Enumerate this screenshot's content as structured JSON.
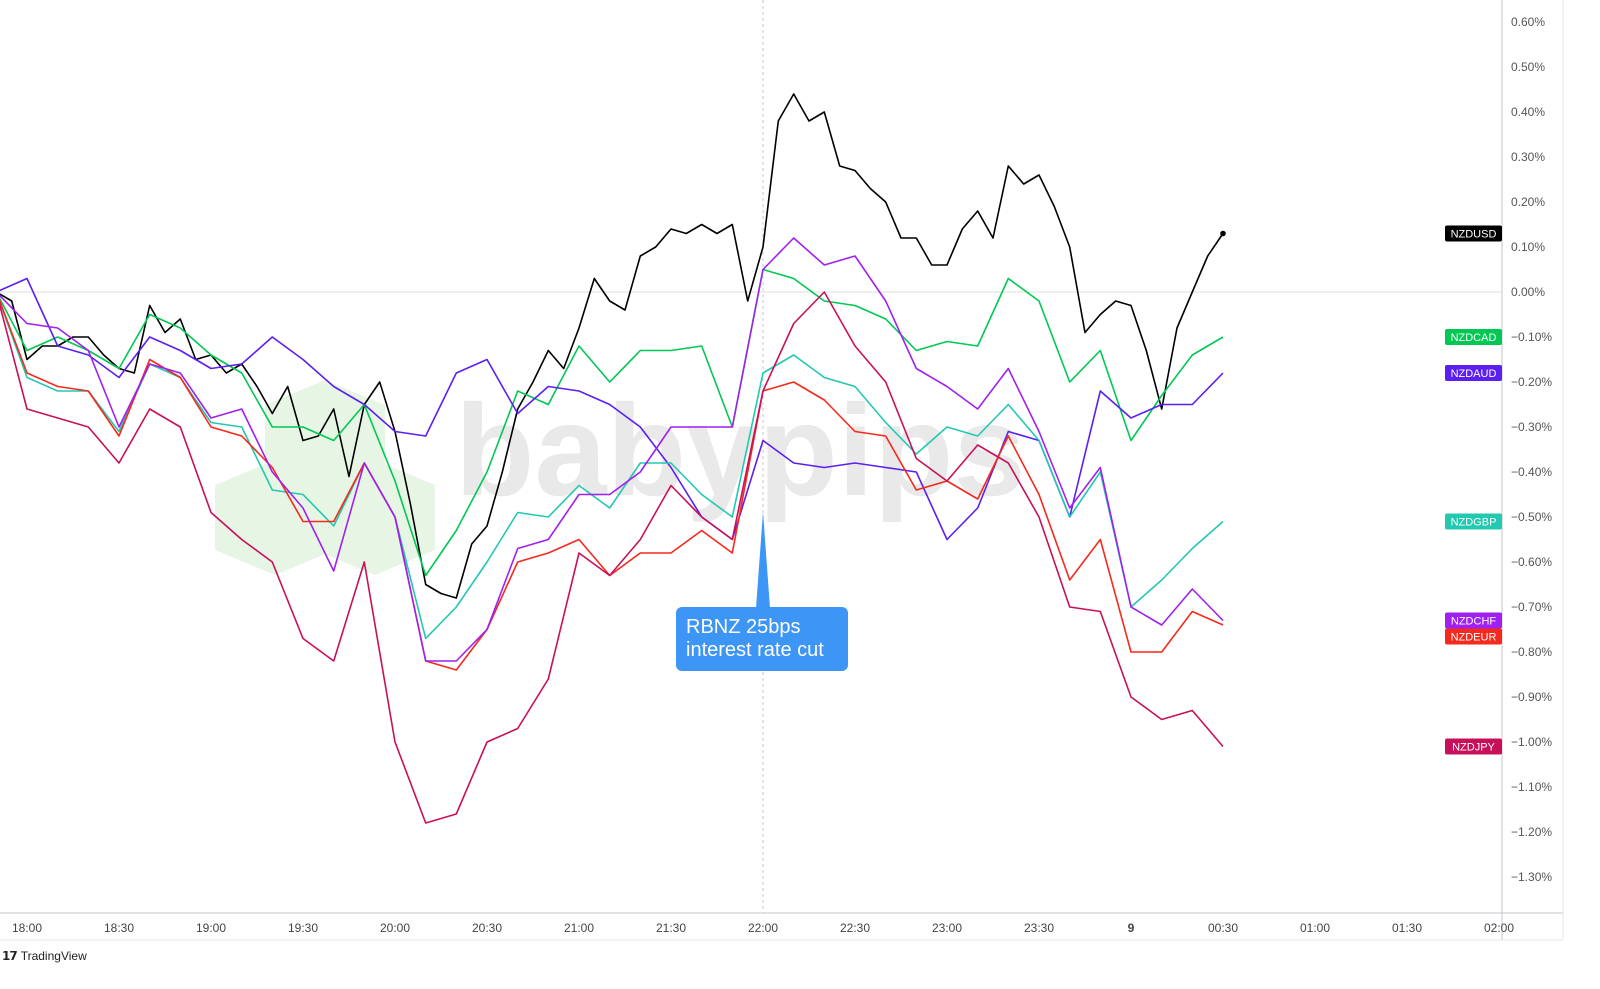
{
  "chart_data": {
    "type": "line",
    "title": "",
    "xlabel": "",
    "ylabel": "",
    "x_unit": "minutes from 18:00",
    "ylim": [
      -1.4,
      0.64
    ],
    "y_ticks": [
      0.6,
      0.5,
      0.4,
      0.3,
      0.2,
      0.1,
      0.0,
      -0.1,
      -0.2,
      -0.3,
      -0.4,
      -0.5,
      -0.6,
      -0.7,
      -0.8,
      -0.9,
      -1.0,
      -1.1,
      -1.2,
      -1.3
    ],
    "y_tick_labels": [
      "0.60%",
      "0.50%",
      "0.40%",
      "0.30%",
      "0.20%",
      "0.10%",
      "0.00%",
      "−0.10%",
      "−0.20%",
      "−0.30%",
      "−0.40%",
      "−0.50%",
      "−0.60%",
      "−0.70%",
      "−0.80%",
      "−0.90%",
      "−1.00%",
      "−1.10%",
      "−1.20%",
      "−1.30%"
    ],
    "x_ticks": [
      {
        "label": "18:00",
        "minutes": 0,
        "bold": false
      },
      {
        "label": "18:30",
        "minutes": 30,
        "bold": false
      },
      {
        "label": "19:00",
        "minutes": 60,
        "bold": false
      },
      {
        "label": "19:30",
        "minutes": 90,
        "bold": false
      },
      {
        "label": "20:00",
        "minutes": 120,
        "bold": false
      },
      {
        "label": "20:30",
        "minutes": 150,
        "bold": false
      },
      {
        "label": "21:00",
        "minutes": 180,
        "bold": false
      },
      {
        "label": "21:30",
        "minutes": 210,
        "bold": false
      },
      {
        "label": "22:00",
        "minutes": 240,
        "bold": false
      },
      {
        "label": "22:30",
        "minutes": 270,
        "bold": false
      },
      {
        "label": "23:00",
        "minutes": 300,
        "bold": false
      },
      {
        "label": "23:30",
        "minutes": 330,
        "bold": false
      },
      {
        "label": "9",
        "minutes": 360,
        "bold": true
      },
      {
        "label": "00:30",
        "minutes": 390,
        "bold": false
      },
      {
        "label": "01:00",
        "minutes": 420,
        "bold": false
      },
      {
        "label": "01:30",
        "minutes": 450,
        "bold": false
      },
      {
        "label": "02:00",
        "minutes": 480,
        "bold": false
      }
    ],
    "grid": false,
    "legend": "right-edge tags",
    "event_line_minutes": 240,
    "annotation": {
      "line1": "RBNZ 25bps",
      "line2": "interest rate cut"
    },
    "series": [
      {
        "name": "NZDUSD",
        "color": "#000000",
        "x_start": -10,
        "step": 5,
        "last_dot": true,
        "values": [
          0,
          -0.02,
          -0.15,
          -0.12,
          -0.12,
          -0.1,
          -0.1,
          -0.14,
          -0.17,
          -0.18,
          -0.03,
          -0.09,
          -0.06,
          -0.15,
          -0.14,
          -0.18,
          -0.16,
          -0.21,
          -0.27,
          -0.21,
          -0.33,
          -0.32,
          -0.26,
          -0.41,
          -0.25,
          -0.2,
          -0.31,
          -0.47,
          -0.65,
          -0.67,
          -0.68,
          -0.56,
          -0.52,
          -0.4,
          -0.26,
          -0.2,
          -0.13,
          -0.17,
          -0.08,
          0.03,
          -0.02,
          -0.04,
          0.08,
          0.1,
          0.14,
          0.13,
          0.15,
          0.13,
          0.15,
          -0.02,
          0.1,
          0.38,
          0.44,
          0.38,
          0.4,
          0.28,
          0.27,
          0.23,
          0.2,
          0.12,
          0.12,
          0.06,
          0.06,
          0.14,
          0.18,
          0.12,
          0.28,
          0.24,
          0.26,
          0.19,
          0.1,
          -0.09,
          -0.05,
          -0.02,
          -0.03,
          -0.13,
          -0.26,
          -0.08,
          0.0,
          0.08,
          0.13
        ]
      },
      {
        "name": "NZDCAD",
        "color": "#00c853",
        "x_start": -10,
        "step": 10,
        "values": [
          0,
          -0.13,
          -0.1,
          -0.13,
          -0.17,
          -0.05,
          -0.08,
          -0.14,
          -0.18,
          -0.3,
          -0.3,
          -0.33,
          -0.25,
          -0.42,
          -0.63,
          -0.53,
          -0.4,
          -0.22,
          -0.25,
          -0.12,
          -0.2,
          -0.13,
          -0.13,
          -0.12,
          -0.3,
          0.05,
          0.03,
          -0.02,
          -0.03,
          -0.06,
          -0.13,
          -0.11,
          -0.12,
          0.03,
          -0.02,
          -0.2,
          -0.13,
          -0.33,
          -0.23,
          -0.14,
          -0.1
        ]
      },
      {
        "name": "NZDAUD",
        "color": "#5b1ff2",
        "x_start": -10,
        "step": 10,
        "values": [
          0,
          0.03,
          -0.12,
          -0.14,
          -0.19,
          -0.1,
          -0.13,
          -0.17,
          -0.16,
          -0.1,
          -0.15,
          -0.21,
          -0.25,
          -0.31,
          -0.32,
          -0.18,
          -0.15,
          -0.27,
          -0.21,
          -0.22,
          -0.25,
          -0.3,
          -0.39,
          -0.5,
          -0.55,
          -0.33,
          -0.38,
          -0.39,
          -0.38,
          -0.39,
          -0.4,
          -0.55,
          -0.48,
          -0.31,
          -0.33,
          -0.5,
          -0.22,
          -0.28,
          -0.25,
          -0.25,
          -0.18
        ]
      },
      {
        "name": "NZDGBP",
        "color": "#22c9b0",
        "x_start": -10,
        "step": 10,
        "values": [
          0,
          -0.19,
          -0.22,
          -0.22,
          -0.31,
          -0.16,
          -0.19,
          -0.29,
          -0.3,
          -0.44,
          -0.45,
          -0.52,
          -0.38,
          -0.5,
          -0.77,
          -0.7,
          -0.6,
          -0.49,
          -0.5,
          -0.43,
          -0.48,
          -0.38,
          -0.38,
          -0.45,
          -0.5,
          -0.18,
          -0.14,
          -0.19,
          -0.21,
          -0.29,
          -0.36,
          -0.3,
          -0.32,
          -0.25,
          -0.33,
          -0.5,
          -0.4,
          -0.7,
          -0.64,
          -0.57,
          -0.51
        ]
      },
      {
        "name": "NZDEUR",
        "color": "#f5291c",
        "x_start": -10,
        "step": 10,
        "values": [
          0,
          -0.18,
          -0.21,
          -0.22,
          -0.32,
          -0.15,
          -0.19,
          -0.3,
          -0.32,
          -0.39,
          -0.51,
          -0.51,
          -0.38,
          -0.5,
          -0.82,
          -0.84,
          -0.75,
          -0.6,
          -0.58,
          -0.55,
          -0.63,
          -0.58,
          -0.58,
          -0.53,
          -0.58,
          -0.22,
          -0.2,
          -0.24,
          -0.31,
          -0.32,
          -0.44,
          -0.42,
          -0.46,
          -0.32,
          -0.45,
          -0.64,
          -0.55,
          -0.8,
          -0.8,
          -0.71,
          -0.74
        ]
      },
      {
        "name": "NZDCHF",
        "color": "#a020f0",
        "x_start": -10,
        "step": 10,
        "values": [
          0,
          -0.07,
          -0.08,
          -0.13,
          -0.3,
          -0.16,
          -0.18,
          -0.28,
          -0.26,
          -0.4,
          -0.48,
          -0.62,
          -0.38,
          -0.5,
          -0.82,
          -0.82,
          -0.75,
          -0.57,
          -0.55,
          -0.45,
          -0.45,
          -0.4,
          -0.3,
          -0.3,
          -0.3,
          0.05,
          0.12,
          0.06,
          0.08,
          -0.02,
          -0.17,
          -0.21,
          -0.26,
          -0.17,
          -0.31,
          -0.48,
          -0.39,
          -0.7,
          -0.74,
          -0.66,
          -0.73
        ]
      },
      {
        "name": "NZDJPY",
        "color": "#c8105a",
        "x_start": -10,
        "step": 10,
        "values": [
          0,
          -0.26,
          -0.28,
          -0.3,
          -0.38,
          -0.26,
          -0.3,
          -0.49,
          -0.55,
          -0.6,
          -0.77,
          -0.82,
          -0.6,
          -1.0,
          -1.18,
          -1.16,
          -1.0,
          -0.97,
          -0.86,
          -0.58,
          -0.63,
          -0.55,
          -0.43,
          -0.5,
          -0.55,
          -0.22,
          -0.07,
          0.0,
          -0.12,
          -0.2,
          -0.37,
          -0.42,
          -0.34,
          -0.38,
          -0.5,
          -0.7,
          -0.71,
          -0.9,
          -0.95,
          -0.93,
          -1.01
        ]
      }
    ]
  },
  "watermark": "babypips",
  "footer": {
    "logo": "17",
    "brand": "TradingView"
  }
}
